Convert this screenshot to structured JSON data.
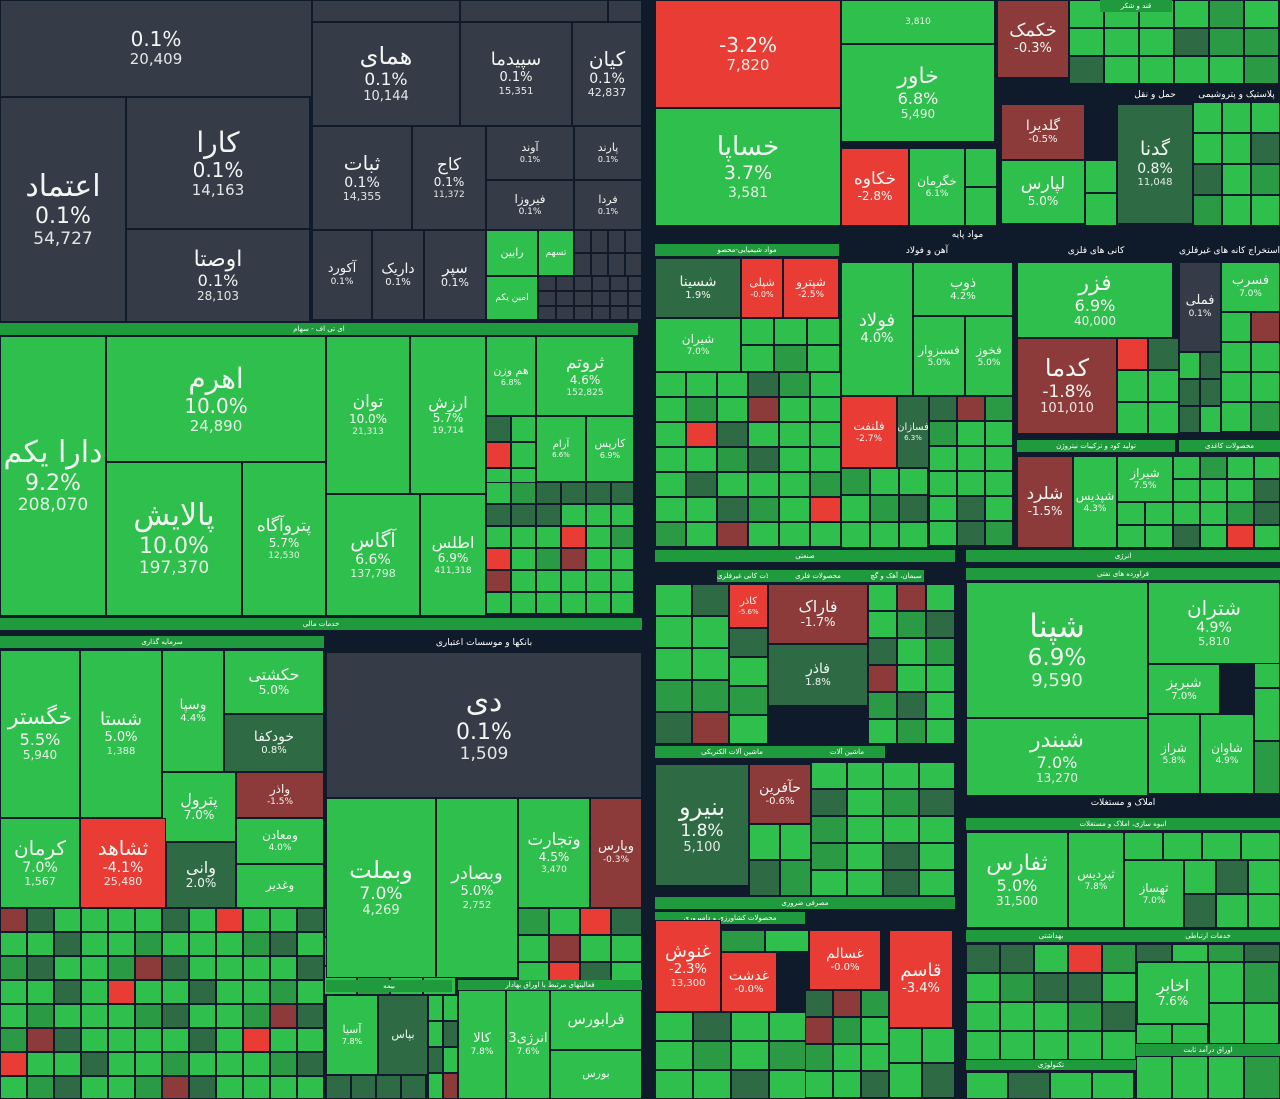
{
  "chart_data": {
    "type": "treemap",
    "title": "",
    "colors": {
      "up": "#2fbf4d",
      "up_mid": "#2a9a44",
      "up_dark": "#2e6b45",
      "flat": "#363b48",
      "down": "#e83c34",
      "down_dark": "#8c3a3a"
    },
    "sectors": [
      {
        "name": "ای تی اف - سهام"
      },
      {
        "name": "خدمات مالی"
      },
      {
        "name": "سرمایه گذاری"
      },
      {
        "name": "بانکها و موسسات اعتباری"
      },
      {
        "name": "بیمه"
      },
      {
        "name": "فعالیتهای مرتبط با اوراق بهادار"
      },
      {
        "name": "مواد پایه"
      },
      {
        "name": "مواد شیمیایی-محصو"
      },
      {
        "name": "آهن و فولاد"
      },
      {
        "name": "کانی های فلزی"
      },
      {
        "name": "استخراج کانه های غیرفلزی"
      },
      {
        "name": "تولید کود و ترکیبات نیتروژن"
      },
      {
        "name": "محصولات کاغذی"
      },
      {
        "name": "صنعتی"
      },
      {
        "name": "سایر محصولات کانی غیرفلزی"
      },
      {
        "name": "محصولات فلزی"
      },
      {
        "name": "سیمان، آهک و گچ"
      },
      {
        "name": "ماشین آلات الکتریکی"
      },
      {
        "name": "ماشین آلات"
      },
      {
        "name": "انرژی"
      },
      {
        "name": "فراورده های نفتی"
      },
      {
        "name": "املاک و مستغلات"
      },
      {
        "name": "انبوه سازی، املاک و مستغلات"
      },
      {
        "name": "مصرفی غیرضروری"
      },
      {
        "name": "مصرفی ضروری"
      },
      {
        "name": "محصولات کشاورزی و دامپروری"
      },
      {
        "name": "بهداشتی"
      },
      {
        "name": "خدمات ارتباطی"
      },
      {
        "name": "تکنولوژی"
      },
      {
        "name": "اوراق درآمد ثابت"
      },
      {
        "name": "قند و شکر"
      },
      {
        "name": "حمل و نقل"
      },
      {
        "name": "پلاستیک و پتروشیمی"
      }
    ],
    "tiles": [
      {
        "name": "",
        "change": "0.1%",
        "value": "20,409"
      },
      {
        "name": "همای",
        "change": "0.1%",
        "value": "10,144"
      },
      {
        "name": "سپیدما",
        "change": "0.1%",
        "value": "15,351"
      },
      {
        "name": "کیان",
        "change": "0.1%",
        "value": "42,837"
      },
      {
        "name": "اعتماد",
        "change": "0.1%",
        "value": "54,727"
      },
      {
        "name": "کارا",
        "change": "0.1%",
        "value": "14,163"
      },
      {
        "name": "ثبات",
        "change": "0.1%",
        "value": "14,355"
      },
      {
        "name": "کاج",
        "change": "0.1%",
        "value": "11,372"
      },
      {
        "name": "آوند",
        "change": "0.1%",
        "value": ""
      },
      {
        "name": "پارند",
        "change": "0.1%",
        "value": ""
      },
      {
        "name": "فیروزا",
        "change": "0.1%",
        "value": ""
      },
      {
        "name": "فردا",
        "change": "0.1%",
        "value": ""
      },
      {
        "name": "اوصتا",
        "change": "0.1%",
        "value": "28,103"
      },
      {
        "name": "آکورد",
        "change": "0.1%",
        "value": ""
      },
      {
        "name": "داریک",
        "change": "0.1%",
        "value": ""
      },
      {
        "name": "سپر",
        "change": "0.1%",
        "value": ""
      },
      {
        "name": "رایین",
        "change": "",
        "value": ""
      },
      {
        "name": "تسهم",
        "change": "",
        "value": ""
      },
      {
        "name": "امین یکم",
        "change": "",
        "value": ""
      },
      {
        "name": "دارا یکم",
        "change": "9.2%",
        "value": "208,070"
      },
      {
        "name": "اهرم",
        "change": "10.0%",
        "value": "24,890"
      },
      {
        "name": "توان",
        "change": "10.0%",
        "value": "21,313"
      },
      {
        "name": "ارزش",
        "change": "5.7%",
        "value": "19,714"
      },
      {
        "name": "هم وزن",
        "change": "6.8%",
        "value": ""
      },
      {
        "name": "ثروتم",
        "change": "4.6%",
        "value": "152,825"
      },
      {
        "name": "آرام",
        "change": "6.6%",
        "value": ""
      },
      {
        "name": "کارپس",
        "change": "6.9%",
        "value": ""
      },
      {
        "name": "پالایش",
        "change": "10.0%",
        "value": "197,370"
      },
      {
        "name": "پتروآگاه",
        "change": "5.7%",
        "value": "12,530"
      },
      {
        "name": "آگاس",
        "change": "6.6%",
        "value": "137,798"
      },
      {
        "name": "اطلس",
        "change": "6.9%",
        "value": "411,318"
      },
      {
        "name": "خگستر",
        "change": "5.5%",
        "value": "5,940"
      },
      {
        "name": "شستا",
        "change": "5.0%",
        "value": "1,388"
      },
      {
        "name": "وسپا",
        "change": "4.4%",
        "value": ""
      },
      {
        "name": "حکشتی",
        "change": "5.0%",
        "value": ""
      },
      {
        "name": "خودکفا",
        "change": "0.8%",
        "value": ""
      },
      {
        "name": "واذر",
        "change": "-1.5%",
        "value": ""
      },
      {
        "name": "پترول",
        "change": "7.0%",
        "value": ""
      },
      {
        "name": "کرمان",
        "change": "7.0%",
        "value": "1,567"
      },
      {
        "name": "ثشاهد",
        "change": "-4.1%",
        "value": "25,480"
      },
      {
        "name": "وانی",
        "change": "2.0%",
        "value": ""
      },
      {
        "name": "ومعادن",
        "change": "4.0%",
        "value": ""
      },
      {
        "name": "وغدیر",
        "change": "",
        "value": ""
      },
      {
        "name": "دی",
        "change": "0.1%",
        "value": "1,509"
      },
      {
        "name": "وبملت",
        "change": "7.0%",
        "value": "4,269"
      },
      {
        "name": "وبصادر",
        "change": "5.0%",
        "value": "2,752"
      },
      {
        "name": "وتجارت",
        "change": "4.5%",
        "value": "3,470"
      },
      {
        "name": "وپارس",
        "change": "-0.3%",
        "value": ""
      },
      {
        "name": "آسیا",
        "change": "7.8%",
        "value": ""
      },
      {
        "name": "بپاس",
        "change": "",
        "value": ""
      },
      {
        "name": "کالا",
        "change": "7.8%",
        "value": ""
      },
      {
        "name": "انرژی3",
        "change": "7.6%",
        "value": ""
      },
      {
        "name": "فرابورس",
        "change": "",
        "value": ""
      },
      {
        "name": "بورس",
        "change": "",
        "value": ""
      },
      {
        "name": "",
        "change": "-3.2%",
        "value": "7,820"
      },
      {
        "name": "",
        "change": "",
        "value": "3,810"
      },
      {
        "name": "خکمک",
        "change": "-0.3%",
        "value": ""
      },
      {
        "name": "خاور",
        "change": "6.8%",
        "value": "5,490"
      },
      {
        "name": "خساپا",
        "change": "3.7%",
        "value": "3,581"
      },
      {
        "name": "خکاوه",
        "change": "-2.8%",
        "value": ""
      },
      {
        "name": "خگرمان",
        "change": "6.1%",
        "value": ""
      },
      {
        "name": "گلدیرا",
        "change": "-0.5%",
        "value": ""
      },
      {
        "name": "لپارس",
        "change": "5.0%",
        "value": ""
      },
      {
        "name": "گدنا",
        "change": "0.8%",
        "value": "11,048"
      },
      {
        "name": "شسینا",
        "change": "1.9%",
        "value": ""
      },
      {
        "name": "شپلی",
        "change": "-0.0%",
        "value": ""
      },
      {
        "name": "شپترو",
        "change": "-2.5%",
        "value": ""
      },
      {
        "name": "شیران",
        "change": "7.0%",
        "value": ""
      },
      {
        "name": "فولاد",
        "change": "4.0%",
        "value": ""
      },
      {
        "name": "ذوب",
        "change": "4.2%",
        "value": ""
      },
      {
        "name": "فسبزوار",
        "change": "5.0%",
        "value": ""
      },
      {
        "name": "فخوز",
        "change": "5.0%",
        "value": ""
      },
      {
        "name": "فلنفت",
        "change": "-2.7%",
        "value": ""
      },
      {
        "name": "فسازان",
        "change": "6.3%",
        "value": ""
      },
      {
        "name": "فزر",
        "change": "6.9%",
        "value": "40,000"
      },
      {
        "name": "کدما",
        "change": "-1.8%",
        "value": "101,010"
      },
      {
        "name": "فملی",
        "change": "0.1%",
        "value": ""
      },
      {
        "name": "فسرب",
        "change": "7.0%",
        "value": ""
      },
      {
        "name": "شلرد",
        "change": "-1.5%",
        "value": ""
      },
      {
        "name": "شیراز",
        "change": "7.5%",
        "value": ""
      },
      {
        "name": "شپدیس",
        "change": "4.3%",
        "value": ""
      },
      {
        "name": "فاراک",
        "change": "-1.7%",
        "value": ""
      },
      {
        "name": "فاذر",
        "change": "1.8%",
        "value": ""
      },
      {
        "name": "کاذر",
        "change": "-5.6%",
        "value": ""
      },
      {
        "name": "بنیرو",
        "change": "1.8%",
        "value": "5,100"
      },
      {
        "name": "حآفرین",
        "change": "-0.6%",
        "value": ""
      },
      {
        "name": "شپنا",
        "change": "6.9%",
        "value": "9,590"
      },
      {
        "name": "شتران",
        "change": "4.9%",
        "value": "5,810"
      },
      {
        "name": "شبریز",
        "change": "7.0%",
        "value": ""
      },
      {
        "name": "شبندر",
        "change": "7.0%",
        "value": "13,270"
      },
      {
        "name": "شراز",
        "change": "5.8%",
        "value": ""
      },
      {
        "name": "شاوان",
        "change": "4.9%",
        "value": ""
      },
      {
        "name": "ثفارس",
        "change": "5.0%",
        "value": "31,500"
      },
      {
        "name": "ثپردیس",
        "change": "7.8%",
        "value": ""
      },
      {
        "name": "ثهساز",
        "change": "7.0%",
        "value": ""
      },
      {
        "name": "غنوش",
        "change": "-2.3%",
        "value": "13,300"
      },
      {
        "name": "غدشت",
        "change": "-0.0%",
        "value": ""
      },
      {
        "name": "قاسم",
        "change": "-3.4%",
        "value": ""
      },
      {
        "name": "غسالم",
        "change": "-0.0%",
        "value": ""
      },
      {
        "name": "اخابر",
        "change": "7.6%",
        "value": ""
      }
    ]
  }
}
